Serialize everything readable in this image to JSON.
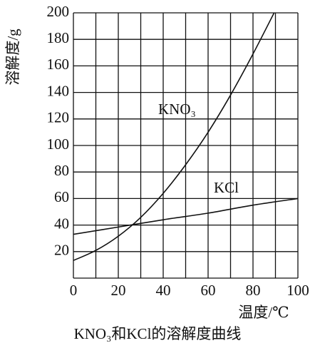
{
  "chart_data": {
    "type": "line",
    "title": "KNO₃和KCl的溶解度曲线",
    "x_label": "温度/℃",
    "y_label": "溶解度/g",
    "xlim": [
      0,
      100
    ],
    "xticks": [
      0,
      20,
      40,
      60,
      80,
      100
    ],
    "x_minor_ticks": [
      10,
      30,
      50,
      70,
      90
    ],
    "ylim": [
      0,
      200
    ],
    "yticks": [
      20,
      40,
      60,
      80,
      100,
      120,
      140,
      160,
      180,
      200
    ],
    "grid": true,
    "series": [
      {
        "name": "KNO₃",
        "color": "#111111",
        "x": [
          0,
          10,
          20,
          30,
          40,
          50,
          60,
          70,
          80,
          90
        ],
        "values": [
          13.3,
          20.9,
          31.6,
          45.8,
          63.9,
          85.5,
          110,
          138,
          169,
          202
        ]
      },
      {
        "name": "KCl",
        "color": "#111111",
        "x": [
          0,
          20,
          40,
          60,
          80,
          100
        ],
        "values": [
          33,
          38.5,
          44,
          49,
          55,
          60
        ]
      }
    ]
  }
}
